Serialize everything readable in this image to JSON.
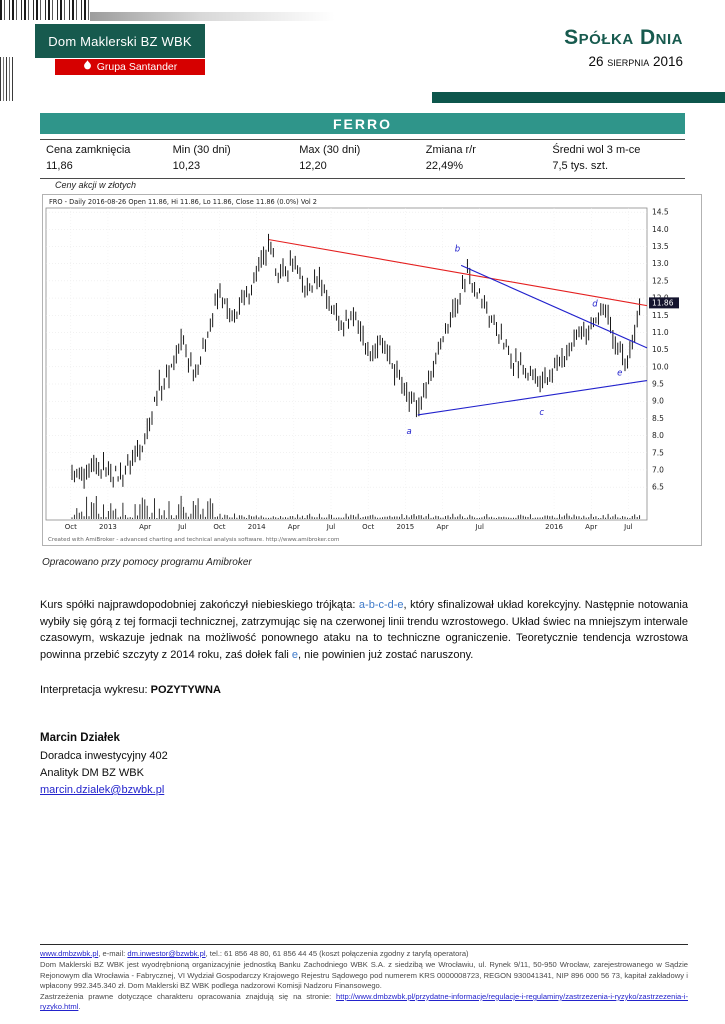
{
  "colors": {
    "brand_green": "#175a4e",
    "santander_red": "#d60000",
    "banner_teal": "#2f958a",
    "rule_teal": "#0d564c",
    "accent_blue": "#3c78c8",
    "link_blue": "#2323cc"
  },
  "header": {
    "logo_line1": "Dom Maklerski BZ WBK",
    "logo_line2": "Grupa Santander",
    "title": "Spółka Dnia",
    "date": "26 sierpnia 2016"
  },
  "company": {
    "name": "FERRO"
  },
  "stats": {
    "columns": [
      {
        "label": "Cena zamknięcia",
        "value": "11,86"
      },
      {
        "label": "Min (30 dni)",
        "value": "10,23"
      },
      {
        "label": "Max (30 dni)",
        "value": "12,20"
      },
      {
        "label": "Zmiana r/r",
        "value": "22,49%"
      },
      {
        "label": "Średni wol 3 m-ce",
        "value": "7,5 tys. szt."
      }
    ],
    "note": "Ceny akcji w złotych"
  },
  "chart_caption": "Opracowano przy pomocy programu Amibroker",
  "chart_data": {
    "type": "candlestick",
    "symbol": "FRO",
    "title_line": "FRO - Daily 2016-08-26 Open 11.86, Hi 11.86, Lo 11.86, Close 11.86 (0.0%) Vol 2",
    "credit": "Created with AmiBroker - advanced charting and technical analysis software. http://www.amibroker.com",
    "ylabel": "",
    "ylim": [
      6.3,
      14.62
    ],
    "y_ticks": [
      14.5,
      14.0,
      13.5,
      13.0,
      12.5,
      12.0,
      11.5,
      11.0,
      10.5,
      10.0,
      9.5,
      9.0,
      8.5,
      8.0,
      7.5,
      7.0,
      6.5
    ],
    "x_ticks": [
      {
        "label": "Oct",
        "m": 0
      },
      {
        "label": "2013",
        "m": 3
      },
      {
        "label": "Apr",
        "m": 6
      },
      {
        "label": "Jul",
        "m": 9
      },
      {
        "label": "Oct",
        "m": 12
      },
      {
        "label": "2014",
        "m": 15
      },
      {
        "label": "Apr",
        "m": 18
      },
      {
        "label": "Jul",
        "m": 21
      },
      {
        "label": "Oct",
        "m": 24
      },
      {
        "label": "2015",
        "m": 27
      },
      {
        "label": "Apr",
        "m": 30
      },
      {
        "label": "Jul",
        "m": 33
      },
      {
        "label": "2016",
        "m": 39
      },
      {
        "label": "Apr",
        "m": 42
      },
      {
        "label": "Jul",
        "m": 45
      }
    ],
    "months_start": "2012-10",
    "monthly_closes": [
      6.9,
      6.7,
      7.1,
      7.0,
      6.8,
      7.3,
      7.9,
      9.3,
      9.9,
      10.8,
      9.7,
      11.0,
      12.1,
      11.4,
      11.9,
      12.8,
      13.4,
      12.6,
      13.1,
      12.1,
      12.6,
      11.7,
      11.3,
      11.5,
      10.4,
      10.7,
      10.0,
      9.4,
      8.8,
      9.7,
      10.9,
      11.7,
      12.8,
      12.1,
      11.3,
      10.6,
      10.1,
      9.8,
      9.4,
      9.9,
      10.3,
      10.9,
      11.3,
      11.7,
      10.7,
      10.1,
      11.86
    ],
    "last_price": "11.86",
    "volume_tall_until_month": 13,
    "trendlines": [
      {
        "color": "#e41f1f",
        "from": {
          "m": 16,
          "p": 13.7
        },
        "to": {
          "m": 46.5,
          "p": 11.78
        }
      },
      {
        "color": "#2121cc",
        "from": {
          "m": 31.5,
          "p": 12.95
        },
        "to": {
          "m": 46.5,
          "p": 10.55
        }
      },
      {
        "color": "#2121cc",
        "from": {
          "m": 28,
          "p": 8.6
        },
        "to": {
          "m": 46.5,
          "p": 9.6
        }
      }
    ],
    "label_color": "#2121cc",
    "wave_labels": [
      {
        "t": "a",
        "m": 27.3,
        "p": 8.05
      },
      {
        "t": "b",
        "m": 31.2,
        "p": 13.35
      },
      {
        "t": "c",
        "m": 38.0,
        "p": 8.6
      },
      {
        "t": "d",
        "m": 42.3,
        "p": 11.75
      },
      {
        "t": "e",
        "m": 44.3,
        "p": 9.75
      }
    ]
  },
  "analysis": {
    "seg1": "Kurs spółki najprawdopodobniej zakończył niebieskiego trójkąta: ",
    "waves": "a-b-c-d-e",
    "seg2": ", który sfinalizował układ korekcyjny. Następnie notowania wybiły się górą z tej formacji technicznej, zatrzymując się na czerwonej linii trendu wzrostowego.  Układ świec na mniejszym interwale czasowym, wskazuje jednak na możliwość ponownego ataku na to techniczne ograniczenie.  Teoretycznie tendencja wzrostowa powinna przebić szczyty z 2014 roku, zaś dołek fali ",
    "wave_e": "e",
    "seg3": ", nie powinien już zostać naruszony."
  },
  "interpretation": {
    "label": "Interpretacja wykresu: ",
    "value": "POZYTYWNA"
  },
  "author": {
    "name": "Marcin Działek",
    "role": "Doradca inwestycyjny 402",
    "title": "Analityk DM BZ WBK",
    "email": "marcin.dzialek@bzwbk.pl"
  },
  "footer": {
    "line1_link1": "www.dmbzwbk.pl",
    "line1_mid": ", e-mail: ",
    "line1_link2": "dm.inwestor@bzwbk.pl",
    "line1_rest": ", tel.: 61 856 48 80, 61 856 44 45 (koszt połączenia zgodny z taryfą operatora)",
    "legal": "Dom Maklerski BZ WBK jest wyodrębnioną organizacyjnie jednostką Banku Zachodniego WBK S.A. z siedzibą we Wrocławiu, ul. Rynek 9/11, 50-950 Wrocław, zarejestrowanego w Sądzie Rejonowym dla Wrocławia - Fabrycznej, VI Wydział Gospodarczy Krajowego Rejestru Sądowego pod numerem KRS 0000008723, REGON 930041341, NIP 896 000 56 73, kapitał zakładowy i wpłacony 992.345.340 zł. Dom Maklerski BZ WBK podlega nadzorowi Komisji Nadzoru Finansowego.",
    "notice_pre": "Zastrzeżenia prawne dotyczące charakteru opracowania znajdują się na stronie: ",
    "notice_link": "http://www.dmbzwbk.pl/przydatne-informacje/regulacje-i-regulaminy/zastrzezenia-i-ryzyko/zastrzezenia-i-ryzyko.html",
    "notice_post": "."
  }
}
